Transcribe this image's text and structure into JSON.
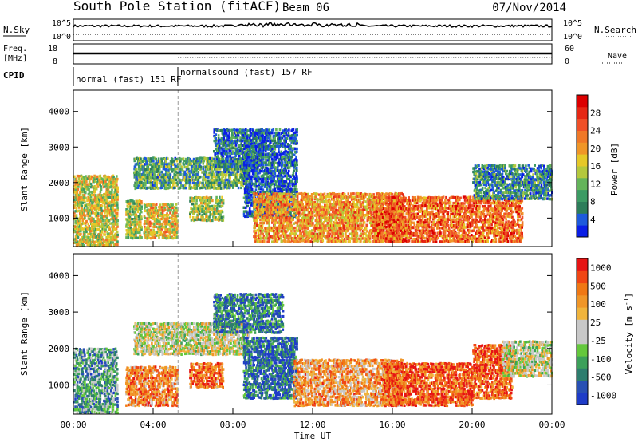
{
  "header": {
    "station": "South Pole Station (fitACF)",
    "beam": "Beam 06",
    "date": "07/Nov/2014"
  },
  "summary": {
    "nsky_label": "N.Sky",
    "nsearch_label": "N.Search",
    "log_tick_top": "10^5",
    "log_tick_bottom": "10^0",
    "freq_label_line1": "Freq.",
    "freq_label_line2": "[MHz]",
    "freq_ticks": [
      "18",
      "8"
    ],
    "nave_label": "Nave",
    "nave_ticks": [
      "60",
      "0"
    ],
    "cpid_label": "CPID",
    "cpid_modes": [
      {
        "label": "normal (fast) 151 RF",
        "start_hour": 0
      },
      {
        "label": "normalsound (fast) 157 RF",
        "start_hour": 5.25
      }
    ]
  },
  "chart_data": [
    {
      "type": "heatmap",
      "name": "power",
      "ylabel": "Slant Range [km]",
      "yticks": [
        1000,
        2000,
        3000,
        4000
      ],
      "ylim": [
        200,
        4600
      ],
      "xlim": [
        0,
        24
      ],
      "colorbar": {
        "label": "Power [dB]",
        "ticks": [
          "4",
          "8",
          "12",
          "16",
          "20",
          "24",
          "28"
        ],
        "colors": [
          "#0a1ee6",
          "#1e5adc",
          "#2d7d5a",
          "#3c9b64",
          "#64b45a",
          "#b4c83c",
          "#e6c828",
          "#f09628",
          "#f07828",
          "#f05028",
          "#e62814",
          "#dc0000"
        ]
      },
      "bands": [
        {
          "t0": 0.0,
          "t1": 2.2,
          "r0": 200,
          "r1": 2200,
          "level": 0.5
        },
        {
          "t0": 2.6,
          "t1": 3.4,
          "r0": 400,
          "r1": 1500,
          "level": 0.45
        },
        {
          "t0": 3.5,
          "t1": 5.2,
          "r0": 400,
          "r1": 1400,
          "level": 0.55
        },
        {
          "t0": 3.0,
          "t1": 8.8,
          "r0": 1800,
          "r1": 2700,
          "level": 0.3
        },
        {
          "t0": 5.8,
          "t1": 7.5,
          "r0": 900,
          "r1": 1600,
          "level": 0.45
        },
        {
          "t0": 7.0,
          "t1": 9.5,
          "r0": 2400,
          "r1": 3500,
          "level": 0.2
        },
        {
          "t0": 8.5,
          "t1": 11.2,
          "r0": 1000,
          "r1": 3500,
          "level": 0.15
        },
        {
          "t0": 9.0,
          "t1": 16.5,
          "r0": 300,
          "r1": 1700,
          "level": 0.65
        },
        {
          "t0": 15.0,
          "t1": 22.5,
          "r0": 300,
          "r1": 1600,
          "level": 0.75
        },
        {
          "t0": 20.0,
          "t1": 24.0,
          "r0": 1500,
          "r1": 2500,
          "level": 0.25
        }
      ]
    },
    {
      "type": "heatmap",
      "name": "velocity",
      "ylabel": "Slant Range [km]",
      "yticks": [
        1000,
        2000,
        3000,
        4000
      ],
      "ylim": [
        200,
        4600
      ],
      "xlim": [
        0,
        24
      ],
      "xticks": [
        "00:00",
        "04:00",
        "08:00",
        "12:00",
        "16:00",
        "20:00",
        "00:00"
      ],
      "xlabel": "Time UT",
      "colorbar": {
        "label": "Velocity [m s",
        "label_superscript": "-1",
        "label_close": "]",
        "ticks": [
          "1000",
          "500",
          "100",
          "25",
          "-25",
          "-100",
          "-500",
          "-1000"
        ],
        "colors": [
          "#1e3cc8",
          "#2850b4",
          "#2d7d6e",
          "#3ca05a",
          "#64c83c",
          "#c8c8c8",
          "#c8c8c8",
          "#f0b43c",
          "#f09628",
          "#f07814",
          "#f04614",
          "#e61414"
        ]
      },
      "bands": [
        {
          "t0": 0.0,
          "t1": 2.2,
          "r0": 200,
          "r1": 2000,
          "level": 0.3
        },
        {
          "t0": 2.6,
          "t1": 5.2,
          "r0": 400,
          "r1": 1500,
          "level": 0.75
        },
        {
          "t0": 3.0,
          "t1": 8.8,
          "r0": 1800,
          "r1": 2700,
          "level": 0.5
        },
        {
          "t0": 5.8,
          "t1": 7.5,
          "r0": 900,
          "r1": 1600,
          "level": 0.8
        },
        {
          "t0": 7.0,
          "t1": 10.5,
          "r0": 2400,
          "r1": 3500,
          "level": 0.2
        },
        {
          "t0": 8.5,
          "t1": 11.2,
          "r0": 600,
          "r1": 2300,
          "level": 0.15
        },
        {
          "t0": 11.0,
          "t1": 16.5,
          "r0": 400,
          "r1": 1700,
          "level": 0.7
        },
        {
          "t0": 15.5,
          "t1": 20.0,
          "r0": 400,
          "r1": 1600,
          "level": 0.85
        },
        {
          "t0": 20.0,
          "t1": 22.0,
          "r0": 600,
          "r1": 2100,
          "level": 0.85
        },
        {
          "t0": 21.5,
          "t1": 24.0,
          "r0": 1200,
          "r1": 2200,
          "level": 0.5
        }
      ]
    }
  ]
}
